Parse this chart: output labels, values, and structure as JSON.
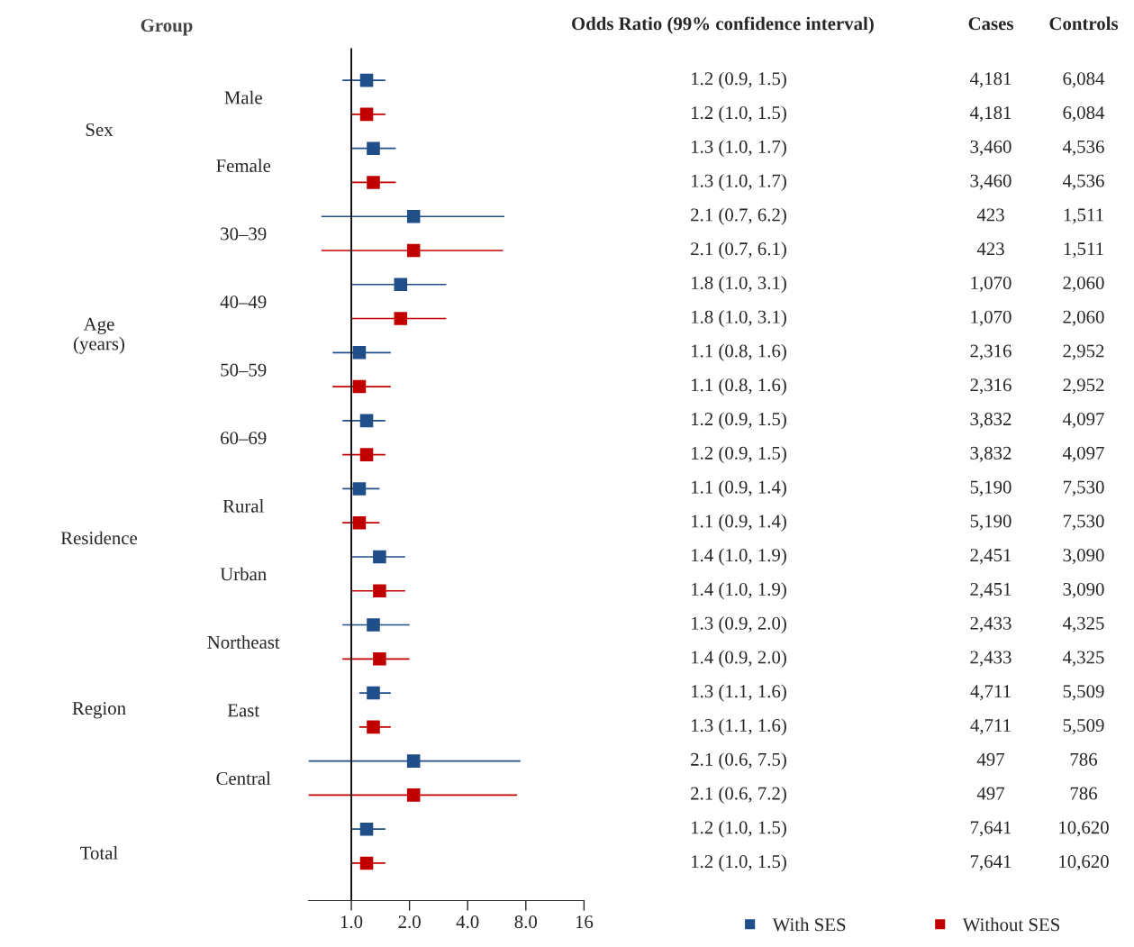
{
  "chart_data": [
    {
      "type": "scatter",
      "ylabel": "Group",
      "categories": [
        "Male",
        "Female",
        "30–39",
        "40–49",
        "50–59",
        "60–69",
        "Rural",
        "Urban",
        "Northeast",
        "East",
        "Central",
        null
      ],
      "annotations": [
        "Sex",
        "Age\n(years)",
        "Residence",
        "Region",
        "Total"
      ],
      "series": [
        {
          "name": "With SES",
          "color": "#1f4e89",
          "values": [
            1.2,
            1.3,
            2.1,
            1.8,
            1.1,
            1.2,
            1.1,
            1.4,
            1.3,
            1.3,
            2.1,
            1.2
          ],
          "errors": [
            [
              0.9,
              1.5
            ],
            [
              1.0,
              1.7
            ],
            [
              0.7,
              6.2
            ],
            [
              1.0,
              3.1
            ],
            [
              0.8,
              1.6
            ],
            [
              0.9,
              1.5
            ],
            [
              0.9,
              1.4
            ],
            [
              1.0,
              1.9
            ],
            [
              0.9,
              2.0
            ],
            [
              1.1,
              1.6
            ],
            [
              0.6,
              7.5
            ],
            [
              1.0,
              1.5
            ]
          ]
        },
        {
          "name": "Without SES",
          "color": "#c00000",
          "values": [
            1.2,
            1.3,
            2.1,
            1.8,
            1.1,
            1.2,
            1.1,
            1.4,
            1.4,
            1.3,
            2.1,
            1.2
          ],
          "errors": [
            [
              1.0,
              1.5
            ],
            [
              1.0,
              1.7
            ],
            [
              0.7,
              6.1
            ],
            [
              1.0,
              3.1
            ],
            [
              0.8,
              1.6
            ],
            [
              0.9,
              1.5
            ],
            [
              0.9,
              1.4
            ],
            [
              1.0,
              1.9
            ],
            [
              0.9,
              2.0
            ],
            [
              1.1,
              1.6
            ],
            [
              0.6,
              7.2
            ],
            [
              1.0,
              1.5
            ]
          ]
        }
      ],
      "orientation": "horizontal",
      "log": "x",
      "xlim": [
        0.6,
        16
      ],
      "xticks": [
        {
          "value": 1,
          "label": "1.0"
        },
        {
          "value": 2,
          "label": "2.0"
        },
        {
          "value": 4,
          "label": "4.0"
        },
        {
          "value": 8,
          "label": "8.0"
        },
        16
      ],
      "ref_lines": [
        {
          "axis": "x",
          "value": 1,
          "color": "#000000"
        }
      ],
      "marker": "square",
      "grid": false,
      "legend": "bottom right"
    },
    {
      "type": "other",
      "annotations": [
        "Odds Ratio (99% confidence interval)",
        "Cases",
        "Controls",
        "1.2 (0.9, 1.5)",
        "4,181",
        "6,084",
        "1.2 (1.0, 1.5)",
        "4,181",
        "6,084",
        "1.3 (1.0, 1.7)",
        "3,460",
        "4,536",
        "1.3 (1.0, 1.7)",
        "3,460",
        "4,536",
        "2.1 (0.7, 6.2)",
        "423",
        "1,511",
        "2.1 (0.7, 6.1)",
        "423",
        "1,511",
        "1.8 (1.0, 3.1)",
        "1,070",
        "2,060",
        "1.8 (1.0, 3.1)",
        "1,070",
        "2,060",
        "1.1 (0.8, 1.6)",
        "2,316",
        "2,952",
        "1.1 (0.8, 1.6)",
        "2,316",
        "2,952",
        "1.2 (0.9, 1.5)",
        "3,832",
        "4,097",
        "1.2 (0.9, 1.5)",
        "3,832",
        "4,097",
        "1.1 (0.9, 1.4)",
        "5,190",
        "7,530",
        "1.1 (0.9, 1.4)",
        "5,190",
        "7,530",
        "1.4 (1.0, 1.9)",
        "2,451",
        "3,090",
        "1.4 (1.0, 1.9)",
        "2,451",
        "3,090",
        "1.3 (0.9, 2.0)",
        "2,433",
        "4,325",
        "1.4 (0.9, 2.0)",
        "2,433",
        "4,325",
        "1.3 (1.1, 1.6)",
        "4,711",
        "5,509",
        "1.3 (1.1, 1.6)",
        "4,711",
        "5,509",
        "2.1 (0.6, 7.5)",
        "497",
        "786",
        "2.1 (0.6, 7.2)",
        "497",
        "786",
        "1.2 (1.0, 1.5)",
        "7,641",
        "10,620",
        "1.2 (1.0, 1.5)",
        "7,641",
        "10,620"
      ]
    }
  ]
}
